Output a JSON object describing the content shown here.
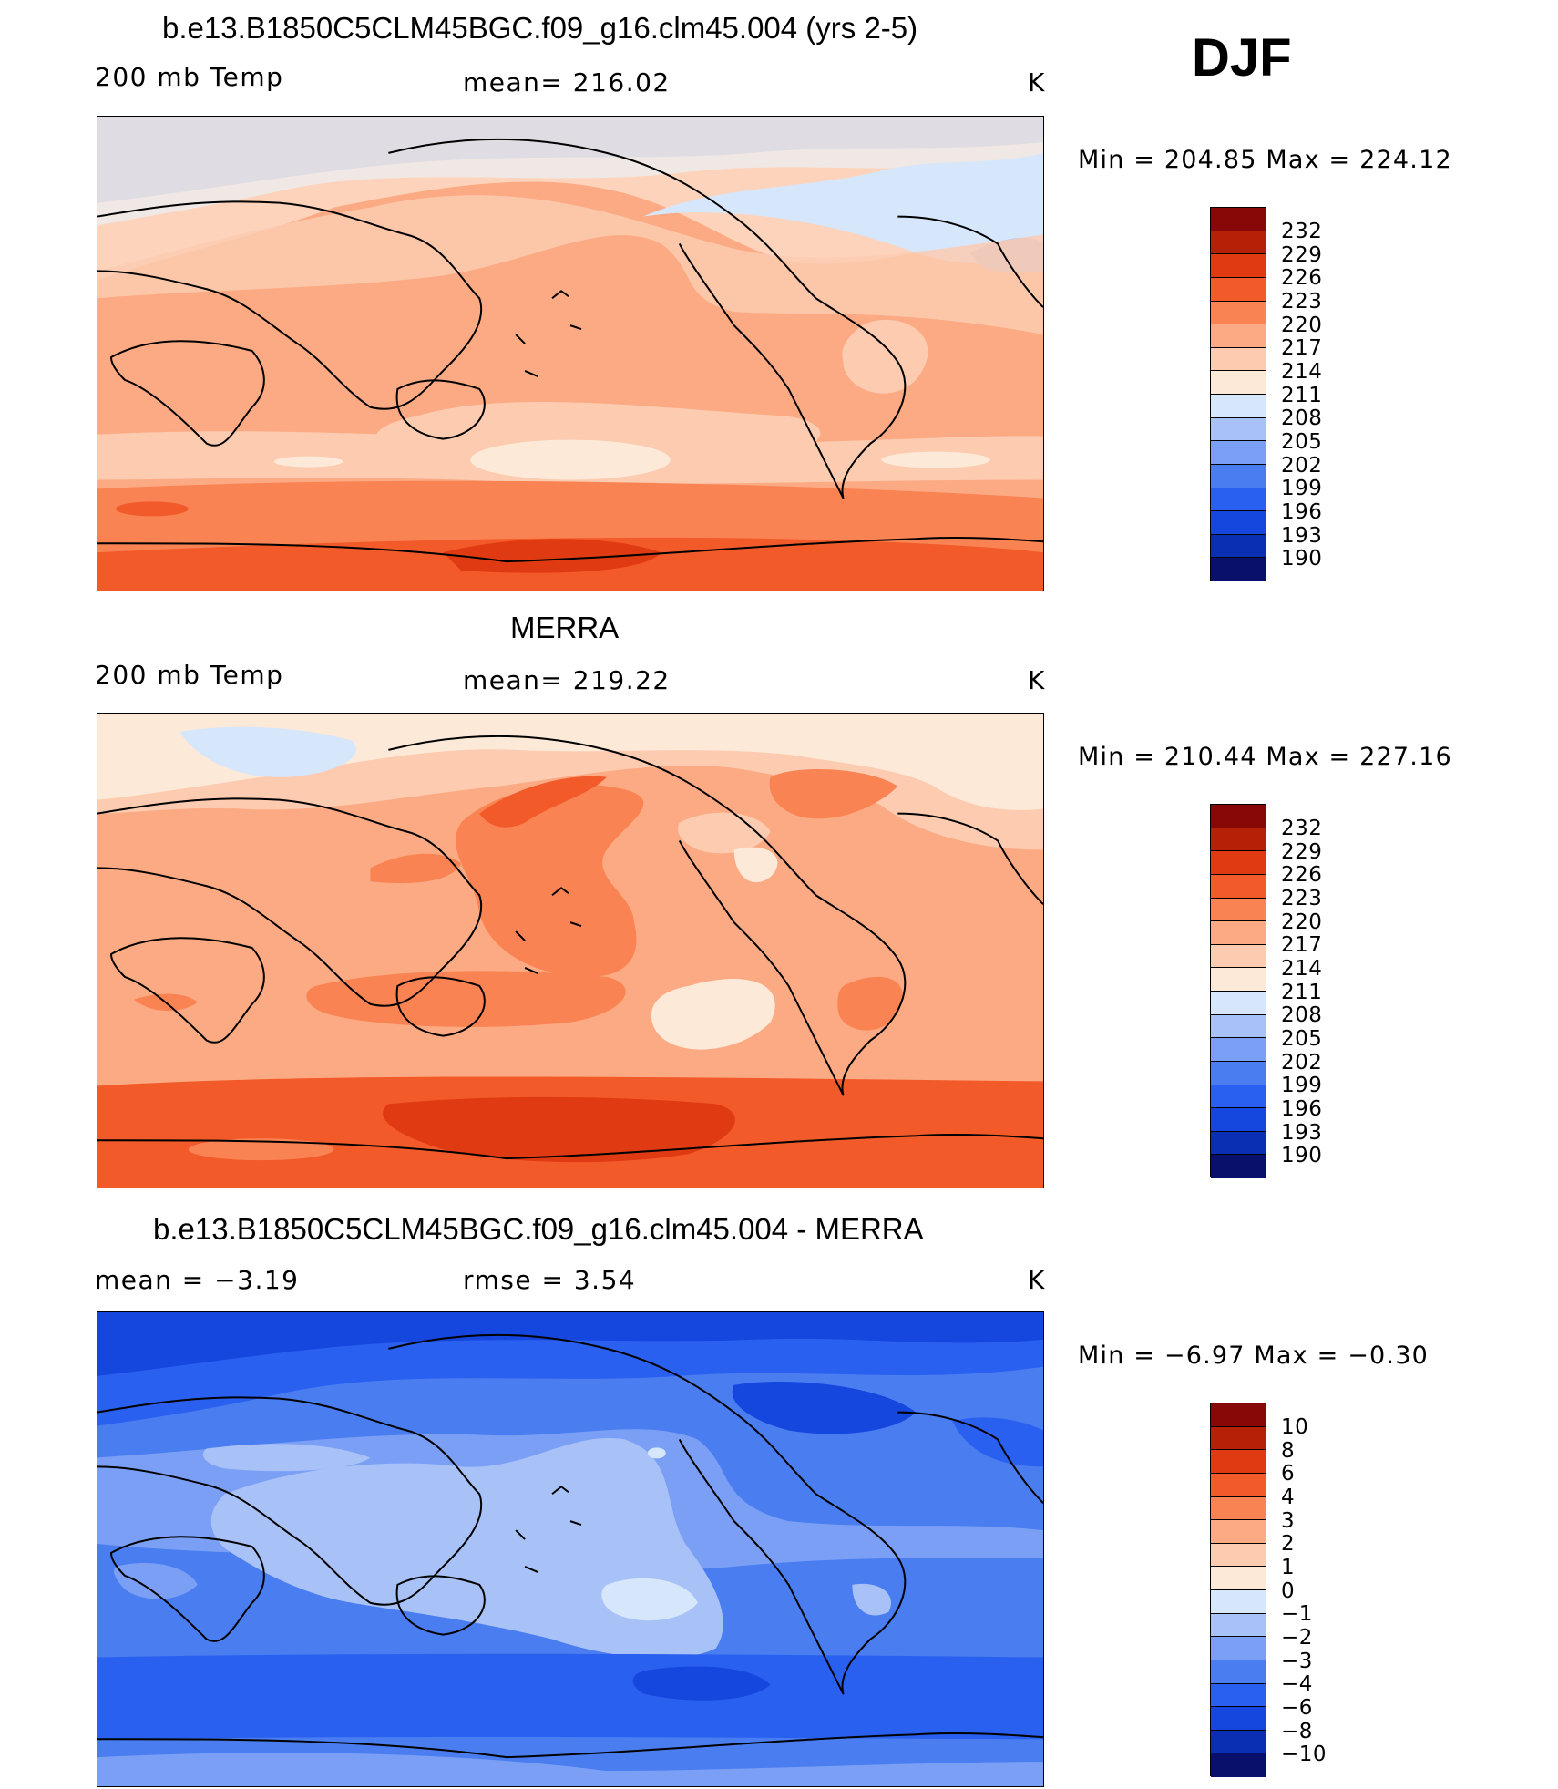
{
  "season_label": "DJF",
  "units_label": "K",
  "colors": {
    "abs_palette_low_to_high": [
      "#08106b",
      "#0a2fb3",
      "#1546de",
      "#2a60f0",
      "#4a7df0",
      "#7a9ff5",
      "#a8c2f7",
      "#d6e6fb",
      "#fde9d8",
      "#fccbb0",
      "#fcaa83",
      "#fa8354",
      "#f25a2a",
      "#e03a12",
      "#b52106",
      "#870807"
    ],
    "diff_palette_low_to_high": [
      "#08106b",
      "#0a2fb3",
      "#1546de",
      "#2a60f0",
      "#4a7df0",
      "#7a9ff5",
      "#a8c2f7",
      "#d6e6fb",
      "#fde9d8",
      "#fccbb0",
      "#fcaa83",
      "#fa8354",
      "#f25a2a",
      "#e03a12",
      "#b52106",
      "#870807"
    ]
  },
  "chart_data": [
    {
      "type": "heatmap",
      "title": "b.e13.B1850C5CLM45BGC.f09_g16.clm45.004 (yrs 2-5)",
      "variable_label": "200 mb Temp",
      "mean_label": "mean=  216.02",
      "minmax_label": "Min  =  204.85  Max  =  224.12",
      "mean": 216.02,
      "min": 204.85,
      "max": 224.12,
      "colorbar_levels": [
        "190",
        "193",
        "196",
        "199",
        "202",
        "205",
        "208",
        "211",
        "214",
        "217",
        "220",
        "223",
        "226",
        "229",
        "232"
      ]
    },
    {
      "type": "heatmap",
      "title": "MERRA",
      "variable_label": "200 mb Temp",
      "mean_label": "mean=  219.22",
      "minmax_label": "Min  =  210.44  Max  =  227.16",
      "mean": 219.22,
      "min": 210.44,
      "max": 227.16,
      "colorbar_levels": [
        "190",
        "193",
        "196",
        "199",
        "202",
        "205",
        "208",
        "211",
        "214",
        "217",
        "220",
        "223",
        "226",
        "229",
        "232"
      ]
    },
    {
      "type": "heatmap",
      "title": "b.e13.B1850C5CLM45BGC.f09_g16.clm45.004 - MERRA",
      "mean_label": "mean  =     −3.19",
      "rmse_label": "rmse  =      3.54",
      "minmax_label": "Min  =    −6.97  Max  =    −0.30",
      "mean": -3.19,
      "rmse": 3.54,
      "min": -6.97,
      "max": -0.3,
      "colorbar_levels": [
        "−10",
        "−8",
        "−6",
        "−4",
        "−3",
        "−2",
        "−1",
        "0",
        "1",
        "2",
        "3",
        "4",
        "6",
        "8",
        "10"
      ]
    }
  ]
}
